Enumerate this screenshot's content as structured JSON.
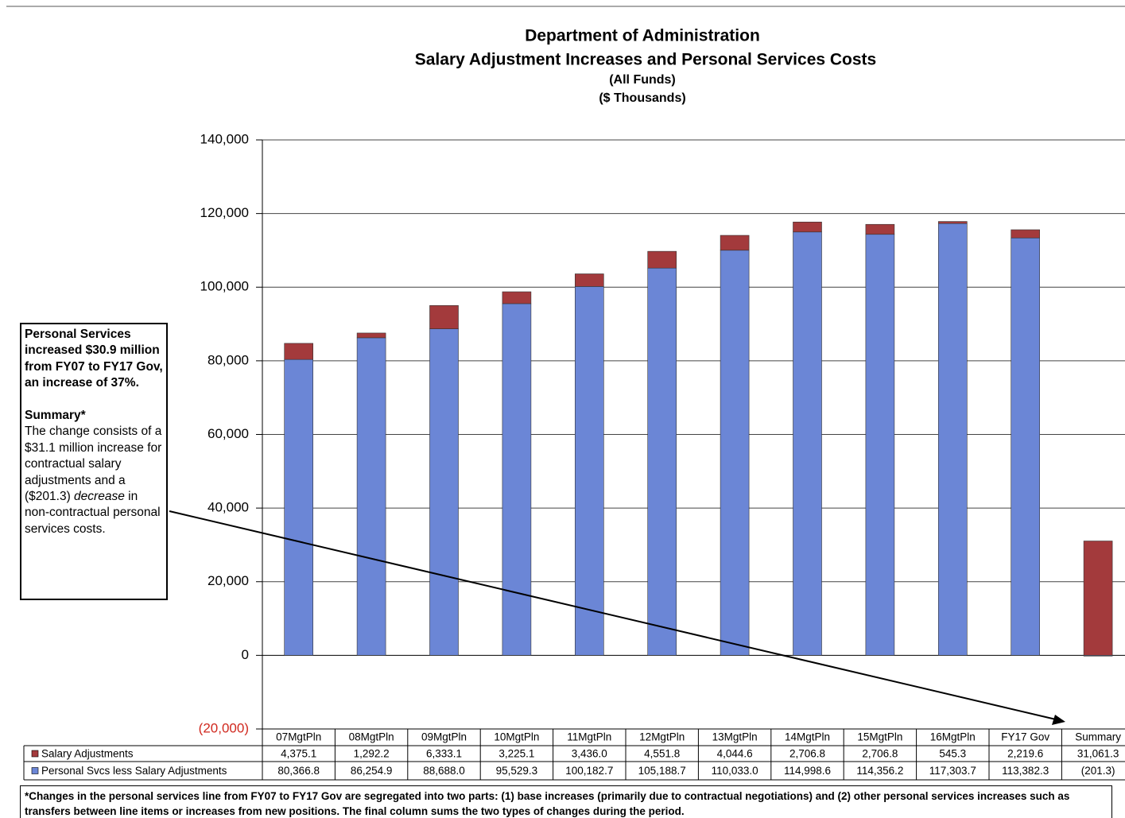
{
  "chart_data": {
    "type": "stacked_bar",
    "title": "Department of Administration",
    "subtitle": "Salary Adjustment Increases and Personal Services Costs",
    "notes": [
      "(All Funds)",
      "($ Thousands)"
    ],
    "categories": [
      "07MgtPln",
      "08MgtPln",
      "09MgtPln",
      "10MgtPln",
      "11MgtPln",
      "12MgtPln",
      "13MgtPln",
      "14MgtPln",
      "15MgtPln",
      "16MgtPln",
      "FY17 Gov",
      "Summary"
    ],
    "series": [
      {
        "name": "Salary Adjustments",
        "color": "#a33a3c",
        "values": [
          4375.1,
          1292.2,
          6333.1,
          3225.1,
          3436.0,
          4551.8,
          4044.6,
          2706.8,
          2706.8,
          545.3,
          2219.6,
          31061.3
        ],
        "value_labels": [
          "4,375.1",
          "1,292.2",
          "6,333.1",
          "3,225.1",
          "3,436.0",
          "4,551.8",
          "4,044.6",
          "2,706.8",
          "2,706.8",
          "545.3",
          "2,219.6",
          "31,061.3"
        ]
      },
      {
        "name": "Personal Svcs less Salary Adjustments",
        "color": "#6b86d6",
        "values": [
          80366.8,
          86254.9,
          88688.0,
          95529.3,
          100182.7,
          105188.7,
          110033.0,
          114998.6,
          114356.2,
          117303.7,
          113382.3,
          -201.3
        ],
        "value_labels": [
          "80,366.8",
          "86,254.9",
          "88,688.0",
          "95,529.3",
          "100,182.7",
          "105,188.7",
          "110,033.0",
          "114,998.6",
          "114,356.2",
          "117,303.7",
          "113,382.3",
          "(201.3)"
        ]
      }
    ],
    "ylim": [
      -20000,
      140000
    ],
    "yticks": [
      {
        "value": -20000,
        "label": "(20,000)"
      },
      0,
      {
        "value": 20000,
        "label": "20,000"
      },
      {
        "value": 40000,
        "label": "40,000"
      },
      {
        "value": 60000,
        "label": "60,000"
      },
      {
        "value": 80000,
        "label": "80,000"
      },
      {
        "value": 100000,
        "label": "100,000"
      },
      {
        "value": 120000,
        "label": "120,000"
      },
      {
        "value": 140000,
        "label": "140,000"
      }
    ],
    "grid": true,
    "annotation": {
      "headline": "Personal Services increased $30.9 million from FY07 to FY17 Gov, an increase of 37%.",
      "summary_title": "Summary*",
      "summary_text": [
        "The change consists of a $31.1 million increase for contractual salary adjustments and a ($201.3) ",
        "decrease",
        " in non-contractual personal services costs."
      ]
    },
    "footnote": "*Changes in the personal services line from FY07 to FY17 Gov  are segregated into two parts:  (1) base increases (primarily due to contractual negotiations) and (2) other personal services increases such as transfers between line items or increases from new positions.  The final column sums the two types of changes during the period."
  }
}
